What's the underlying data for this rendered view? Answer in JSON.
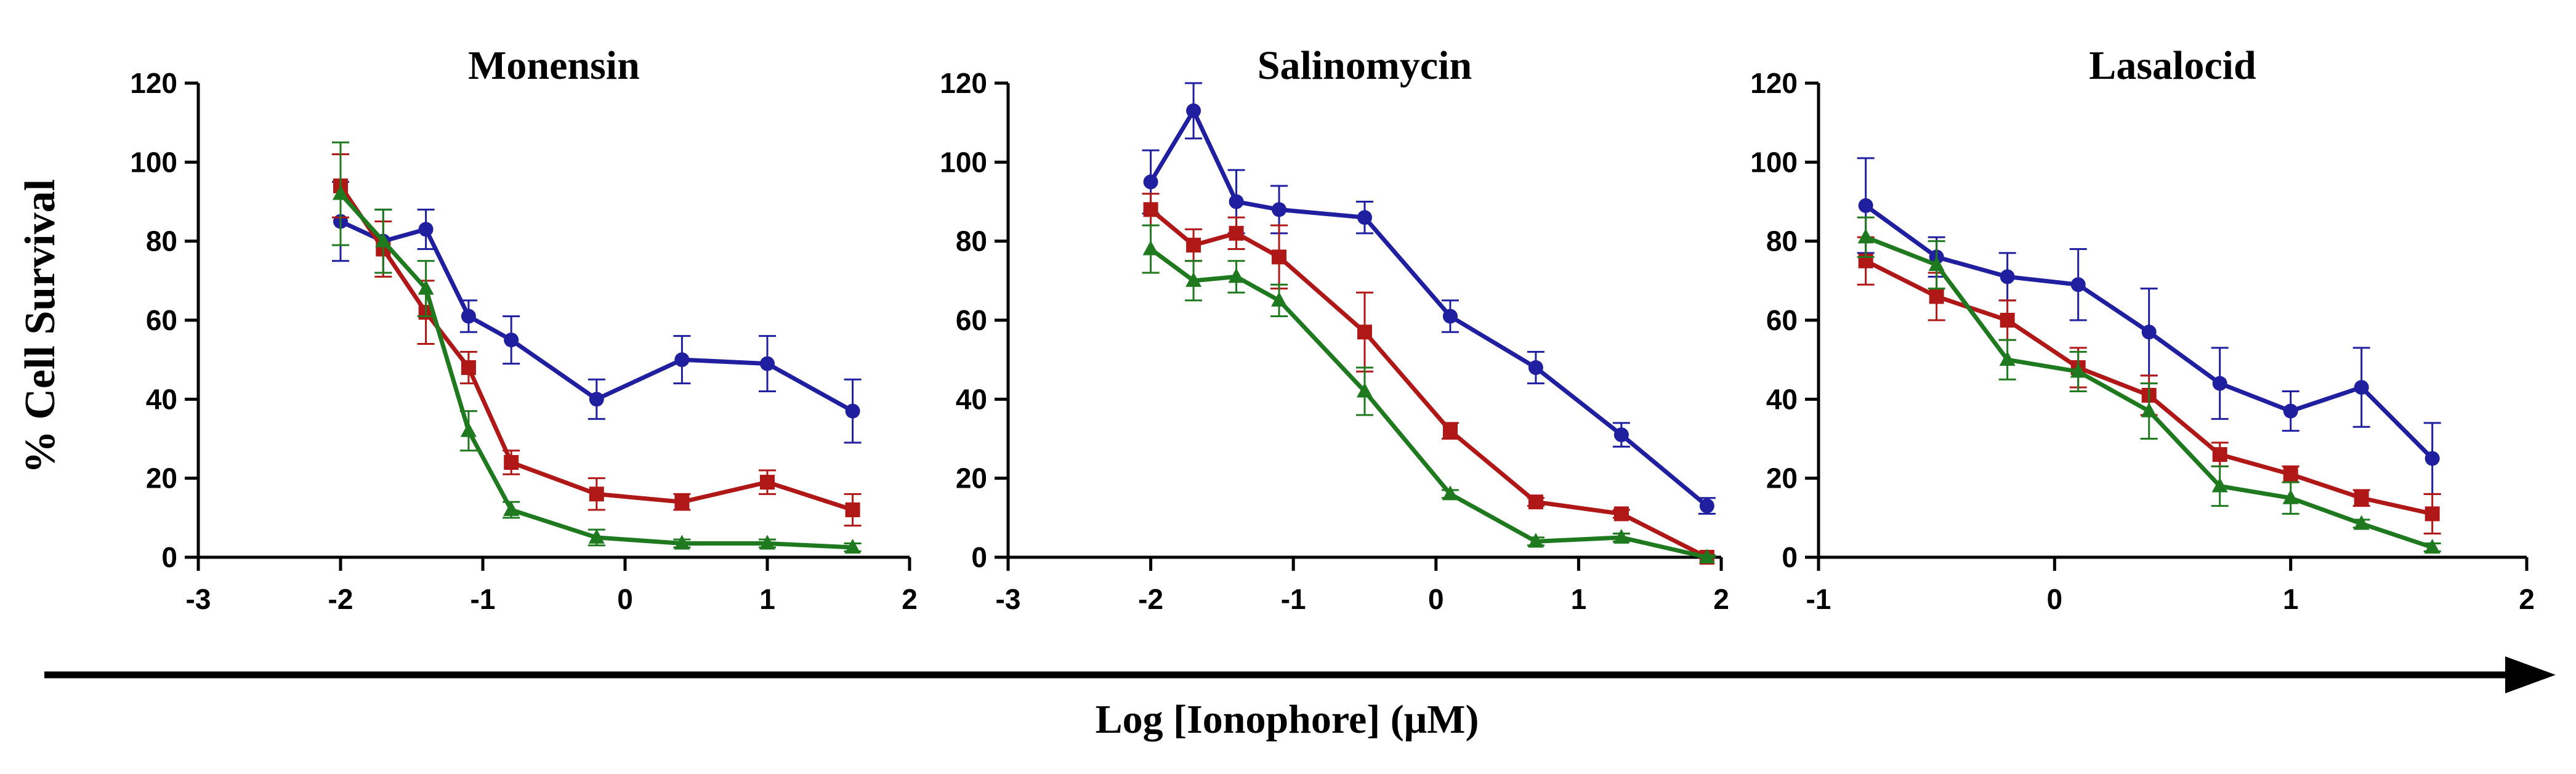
{
  "figure": {
    "ylabel": "% Cell Survival",
    "xlabel": "Log [Ionophore] (μM)"
  },
  "colors": {
    "blue": "#1f1fa0",
    "red": "#b01818",
    "green": "#1f7a1f"
  },
  "chart_data": [
    {
      "type": "line",
      "title": "Monensin",
      "xlim": [
        -3,
        2
      ],
      "ylim": [
        0,
        120
      ],
      "xticks": [
        -3,
        -2,
        -1,
        0,
        1,
        2
      ],
      "yticks": [
        0,
        20,
        40,
        60,
        80,
        100,
        120
      ],
      "series": [
        {
          "name": "blue",
          "marker": "circle",
          "x": [
            -2,
            -1.7,
            -1.4,
            -1.1,
            -0.8,
            -0.2,
            0.4,
            1.0,
            1.6
          ],
          "y": [
            85,
            80,
            83,
            61,
            55,
            40,
            50,
            49,
            37
          ],
          "err": [
            10,
            8,
            5,
            4,
            6,
            5,
            6,
            7,
            8
          ]
        },
        {
          "name": "red",
          "marker": "square",
          "x": [
            -2,
            -1.7,
            -1.4,
            -1.1,
            -0.8,
            -0.2,
            0.4,
            1.0,
            1.6
          ],
          "y": [
            94,
            78,
            62,
            48,
            24,
            16,
            14,
            19,
            12
          ],
          "err": [
            8,
            7,
            8,
            4,
            3,
            4,
            2,
            3,
            4
          ]
        },
        {
          "name": "green",
          "marker": "triangle",
          "x": [
            -2,
            -1.7,
            -1.4,
            -1.1,
            -0.8,
            -0.2,
            0.4,
            1.0,
            1.6
          ],
          "y": [
            92,
            80,
            68,
            32,
            12,
            5,
            3.5,
            3.5,
            2.5
          ],
          "err": [
            13,
            8,
            7,
            5,
            2,
            2,
            1,
            1,
            1
          ]
        }
      ]
    },
    {
      "type": "line",
      "title": "Salinomycin",
      "xlim": [
        -3,
        2
      ],
      "ylim": [
        0,
        120
      ],
      "xticks": [
        -3,
        -2,
        -1,
        0,
        1,
        2
      ],
      "yticks": [
        0,
        20,
        40,
        60,
        80,
        100,
        120
      ],
      "series": [
        {
          "name": "blue",
          "marker": "circle",
          "x": [
            -2,
            -1.7,
            -1.4,
            -1.1,
            -0.5,
            0.1,
            0.7,
            1.3,
            1.9
          ],
          "y": [
            95,
            113,
            90,
            88,
            86,
            61,
            48,
            31,
            13
          ],
          "err": [
            8,
            7,
            8,
            6,
            4,
            4,
            4,
            3,
            2
          ]
        },
        {
          "name": "red",
          "marker": "square",
          "x": [
            -2,
            -1.7,
            -1.4,
            -1.1,
            -0.5,
            0.1,
            0.7,
            1.3,
            1.9
          ],
          "y": [
            88,
            79,
            82,
            76,
            57,
            32,
            14,
            11,
            0
          ],
          "err": [
            4,
            4,
            4,
            8,
            10,
            2,
            1,
            1,
            0.5
          ]
        },
        {
          "name": "green",
          "marker": "triangle",
          "x": [
            -2,
            -1.7,
            -1.4,
            -1.1,
            -0.5,
            0.1,
            0.7,
            1.3,
            1.9
          ],
          "y": [
            78,
            70,
            71,
            65,
            42,
            16,
            4,
            5,
            0
          ],
          "err": [
            6,
            5,
            4,
            4,
            6,
            1,
            1,
            1,
            0.5
          ]
        }
      ]
    },
    {
      "type": "line",
      "title": "Lasalocid",
      "xlim": [
        -1,
        2
      ],
      "ylim": [
        0,
        120
      ],
      "xticks": [
        -1,
        0,
        1,
        2
      ],
      "yticks": [
        0,
        20,
        40,
        60,
        80,
        100,
        120
      ],
      "series": [
        {
          "name": "blue",
          "marker": "circle",
          "x": [
            -0.8,
            -0.5,
            -0.2,
            0.1,
            0.4,
            0.7,
            1.0,
            1.3,
            1.6
          ],
          "y": [
            89,
            76,
            71,
            69,
            57,
            44,
            37,
            43,
            25
          ],
          "err": [
            12,
            5,
            6,
            9,
            11,
            9,
            5,
            10,
            9
          ]
        },
        {
          "name": "red",
          "marker": "square",
          "x": [
            -0.8,
            -0.5,
            -0.2,
            0.1,
            0.4,
            0.7,
            1.0,
            1.3,
            1.6
          ],
          "y": [
            75,
            66,
            60,
            48,
            41,
            26,
            21,
            15,
            11
          ],
          "err": [
            6,
            6,
            5,
            5,
            5,
            3,
            2,
            2,
            5
          ]
        },
        {
          "name": "green",
          "marker": "triangle",
          "x": [
            -0.8,
            -0.5,
            -0.2,
            0.1,
            0.4,
            0.7,
            1.0,
            1.3,
            1.6
          ],
          "y": [
            81,
            74,
            50,
            47,
            37,
            18,
            15,
            8.5,
            2.5
          ],
          "err": [
            5,
            6,
            5,
            5,
            7,
            5,
            4,
            1,
            1
          ]
        }
      ]
    }
  ]
}
